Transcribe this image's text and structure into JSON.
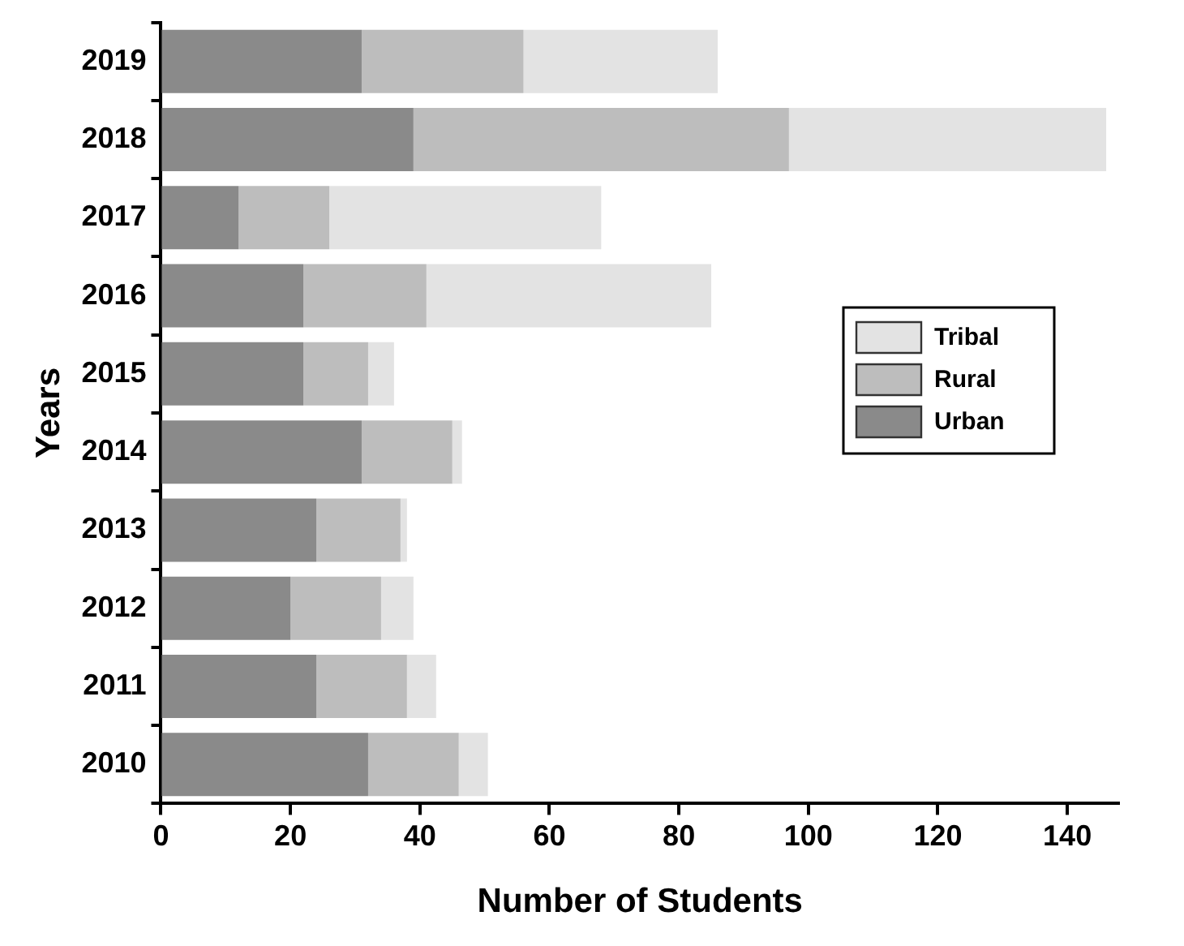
{
  "chart_data": {
    "type": "bar",
    "orientation": "horizontal",
    "stacked": true,
    "xlabel": "Number of Students",
    "ylabel": "Years",
    "categories": [
      "2019",
      "2018",
      "2017",
      "2016",
      "2015",
      "2014",
      "2013",
      "2012",
      "2011",
      "2010"
    ],
    "series": [
      {
        "name": "Urban",
        "color": "#8a8a8a",
        "values": [
          31,
          39,
          12,
          22,
          22,
          31,
          24,
          20,
          24,
          32
        ]
      },
      {
        "name": "Rural",
        "color": "#bdbdbd",
        "values": [
          25,
          58,
          14,
          19,
          10,
          14,
          13,
          14,
          14,
          14
        ]
      },
      {
        "name": "Tribal",
        "color": "#e3e3e3",
        "values": [
          30,
          49,
          42,
          44,
          4,
          1.5,
          1,
          5,
          4.5,
          4.5
        ]
      }
    ],
    "xlim": [
      0,
      148
    ],
    "xticks": [
      0,
      20,
      40,
      60,
      80,
      100,
      120,
      140
    ],
    "grid": false,
    "legend": "right"
  }
}
